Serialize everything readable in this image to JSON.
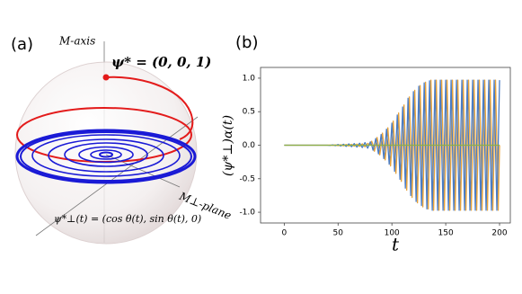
{
  "panel_a": {
    "label": "(a)",
    "axis_label": "M-axis",
    "point_label": "ψ* = (0, 0, 1)",
    "plane_label": "M⊥-plane",
    "trajectory_label": "ψ*⊥(t) = (cos θ(t), sin θ(t), 0)"
  },
  "chart_data": {
    "type": "line",
    "panel_label": "(b)",
    "x_label": "t",
    "y_label": "(ψ*⊥)α(t)",
    "xlim": [
      -22,
      210
    ],
    "ylim": [
      -1.16,
      1.16
    ],
    "xticks": [
      0,
      50,
      100,
      150,
      200
    ],
    "yticks": [
      {
        "value": -1,
        "label": "-1.0"
      },
      {
        "value": -0.5,
        "label": "-0.5"
      },
      {
        "value": 0,
        "label": "0.0"
      },
      {
        "value": 0.5,
        "label": "0.5"
      },
      {
        "value": 1,
        "label": "1.0"
      }
    ],
    "x": [
      0,
      40,
      42.5,
      45,
      47.5,
      50,
      52.5,
      55,
      57.5,
      60,
      62.5,
      65,
      67.5,
      70,
      72.5,
      75,
      77.5,
      80,
      81.25,
      82.5,
      83.75,
      85,
      86.25,
      87.5,
      88.75,
      90,
      91.25,
      92.5,
      93.75,
      95,
      96.25,
      97.5,
      98.75,
      100,
      101.25,
      102.5,
      103.75,
      105,
      106.25,
      107.5,
      108.75,
      110,
      111.25,
      112.5,
      113.75,
      115,
      116.25,
      117.5,
      118.75,
      120,
      121.25,
      122.5,
      123.75,
      125,
      126.25,
      127.5,
      128.75,
      130,
      131.25,
      132.5,
      133.75,
      135,
      136.25,
      137.5,
      138.75,
      140,
      141.25,
      142.5,
      143.75,
      145,
      146.25,
      147.5,
      148.75,
      150,
      151.25,
      152.5,
      153.75,
      155,
      156.25,
      157.5,
      158.75,
      160,
      161.25,
      162.5,
      163.75,
      165,
      166.25,
      167.5,
      168.75,
      170,
      171.25,
      172.5,
      173.75,
      175,
      176.25,
      177.5,
      178.75,
      180,
      181.25,
      182.5,
      183.75,
      185,
      186.25,
      187.5,
      188.75,
      190,
      191.25,
      192.5,
      193.75,
      195,
      196.25,
      197.5,
      198.75,
      200
    ],
    "series": [
      {
        "color": "#e8a33a",
        "values": [
          0,
          0,
          0.002,
          -0.003,
          0.004,
          -0.006,
          0.007,
          -0.009,
          0.011,
          -0.012,
          0.013,
          -0.015,
          0.017,
          -0.018,
          0.021,
          -0.024,
          0.027,
          0,
          0.06,
          0,
          -0.09,
          0,
          0.115,
          0,
          -0.145,
          0,
          0.18,
          0,
          -0.22,
          0,
          0.26,
          0,
          -0.31,
          0,
          0.36,
          0,
          -0.42,
          0,
          0.48,
          0,
          -0.54,
          0,
          0.6,
          0,
          -0.67,
          0,
          0.72,
          0,
          -0.78,
          0,
          0.82,
          0,
          -0.86,
          0,
          0.89,
          0,
          -0.92,
          0,
          0.94,
          0,
          -0.95,
          0,
          0.97,
          0,
          -0.97,
          0,
          0.97,
          0,
          -0.97,
          0,
          0.97,
          0,
          -0.97,
          0,
          0.97,
          0,
          -0.97,
          0,
          0.97,
          0,
          -0.97,
          0,
          0.97,
          0,
          -0.97,
          0,
          0.97,
          0,
          -0.97,
          0,
          0.97,
          0,
          -0.97,
          0,
          0.97,
          0,
          -0.97,
          0,
          0.97,
          0,
          -0.97,
          0,
          0.97,
          0,
          -0.97,
          0,
          0.97,
          0,
          -0.97,
          0,
          0.97,
          0,
          -0.97,
          0
        ]
      },
      {
        "color": "#4a7cc4",
        "values": [
          0,
          0,
          -0.003,
          0.005,
          -0.007,
          0.01,
          -0.012,
          0.015,
          -0.018,
          0.02,
          -0.022,
          0.025,
          -0.028,
          0.03,
          -0.035,
          0.04,
          -0.045,
          0.05,
          0,
          -0.075,
          0,
          0.1,
          0,
          -0.13,
          0,
          0.16,
          0,
          -0.2,
          0,
          0.24,
          0,
          -0.285,
          0,
          0.33,
          0,
          -0.39,
          0,
          0.45,
          0,
          -0.51,
          0,
          0.57,
          0,
          -0.64,
          0,
          0.7,
          0,
          -0.75,
          0,
          0.8,
          0,
          -0.84,
          0,
          0.88,
          0,
          -0.9,
          0,
          0.93,
          0,
          -0.95,
          0,
          0.96,
          0,
          -0.97,
          0,
          0.97,
          0,
          -0.97,
          0,
          0.97,
          0,
          -0.97,
          0,
          0.97,
          0,
          -0.97,
          0,
          0.97,
          0,
          -0.97,
          0,
          0.97,
          0,
          -0.97,
          0,
          0.97,
          0,
          -0.97,
          0,
          0.97,
          0,
          -0.97,
          0,
          0.97,
          0,
          -0.97,
          0,
          0.97,
          0,
          -0.97,
          0,
          0.97,
          0,
          -0.97,
          0,
          0.97,
          0,
          -0.97,
          0,
          0.97,
          0,
          -0.97,
          0,
          0.97
        ]
      },
      {
        "color": "#8db04a",
        "values": [
          0,
          0,
          0,
          0,
          0,
          0,
          0,
          0,
          0,
          0,
          0,
          0,
          0,
          0,
          0,
          0,
          0,
          0,
          0,
          0,
          0,
          0,
          0,
          0,
          0,
          0,
          0,
          0,
          0,
          0,
          0,
          0,
          0,
          0,
          0,
          0,
          0,
          0,
          0,
          0,
          0,
          0,
          0,
          0,
          0,
          0,
          0,
          0,
          0,
          0,
          0,
          0,
          0,
          0,
          0,
          0,
          0,
          0,
          0,
          0,
          0,
          0,
          0,
          0,
          0,
          0,
          0,
          0,
          0,
          0,
          0,
          0,
          0,
          0,
          0,
          0,
          0,
          0,
          0,
          0,
          0,
          0,
          0,
          0,
          0,
          0,
          0,
          0,
          0,
          0,
          0,
          0,
          0,
          0,
          0,
          0,
          0,
          0,
          0,
          0,
          0,
          0,
          0,
          0,
          0,
          0,
          0,
          0,
          0,
          0,
          0,
          0,
          0,
          0
        ]
      }
    ]
  }
}
